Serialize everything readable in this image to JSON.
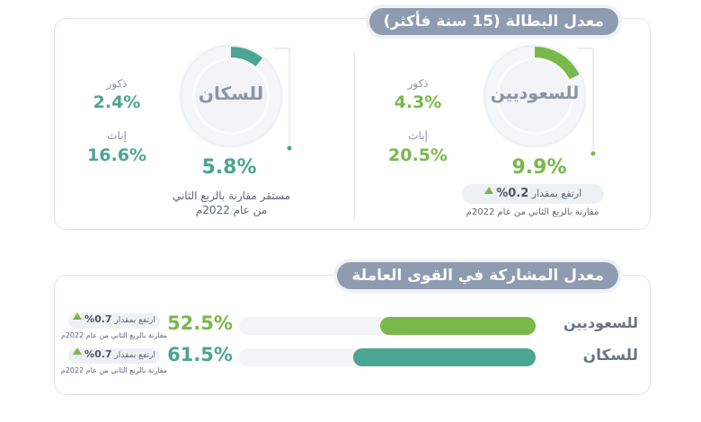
{
  "unemployment": {
    "title": "معدل البطالة (15 سنة فأكثر)",
    "saudis": {
      "label": "للسعوديين",
      "value": "9.9%",
      "rate": 9.9,
      "male_label": "ذكور",
      "male_value": "4.3%",
      "female_label": "إناث",
      "female_value": "20.5%",
      "change_text": "ارتفع بمقدار",
      "change_value": "0.2%",
      "compare_text": "مقارنة بالربع الثاني من عام 2022م",
      "color": "#79b84a"
    },
    "population": {
      "label": "للسكان",
      "value": "5.8%",
      "rate": 5.8,
      "male_label": "ذكور",
      "male_value": "2.4%",
      "female_label": "إناث",
      "female_value": "16.6%",
      "note_line1": "مستقر مقارنة بالربع الثاني",
      "note_line2": "من عام 2022م",
      "color": "#4aa593"
    }
  },
  "participation": {
    "title": "معدل المشاركة في القوى العاملة",
    "rows": [
      {
        "label": "للسعوديين",
        "value": "52.5%",
        "rate": 52.5,
        "change_text": "ارتفع بمقدار",
        "change_value": "0.7%",
        "compare_text": "مقارنة بالربع الثاني من عام 2022م",
        "color": "#79b84a"
      },
      {
        "label": "للسكان",
        "value": "61.5%",
        "rate": 61.5,
        "change_text": "ارتفع بمقدار",
        "change_value": "0.7%",
        "compare_text": "مقارنة بالربع الثاني من عام 2022م",
        "color": "#4aa593"
      }
    ]
  },
  "chart_data": [
    {
      "type": "pie",
      "title": "معدل البطالة (15 سنة فأكثر)",
      "categories": [
        "للسعوديين",
        "للسكان"
      ],
      "values": [
        9.9,
        5.8
      ],
      "breakdown": {
        "للسعوديين": {
          "ذكور": 4.3,
          "إناث": 20.5
        },
        "للسكان": {
          "ذكور": 2.4,
          "إناث": 16.6
        }
      }
    },
    {
      "type": "bar",
      "title": "معدل المشاركة في القوى العاملة",
      "categories": [
        "للسعوديين",
        "للسكان"
      ],
      "values": [
        52.5,
        61.5
      ]
    }
  ]
}
